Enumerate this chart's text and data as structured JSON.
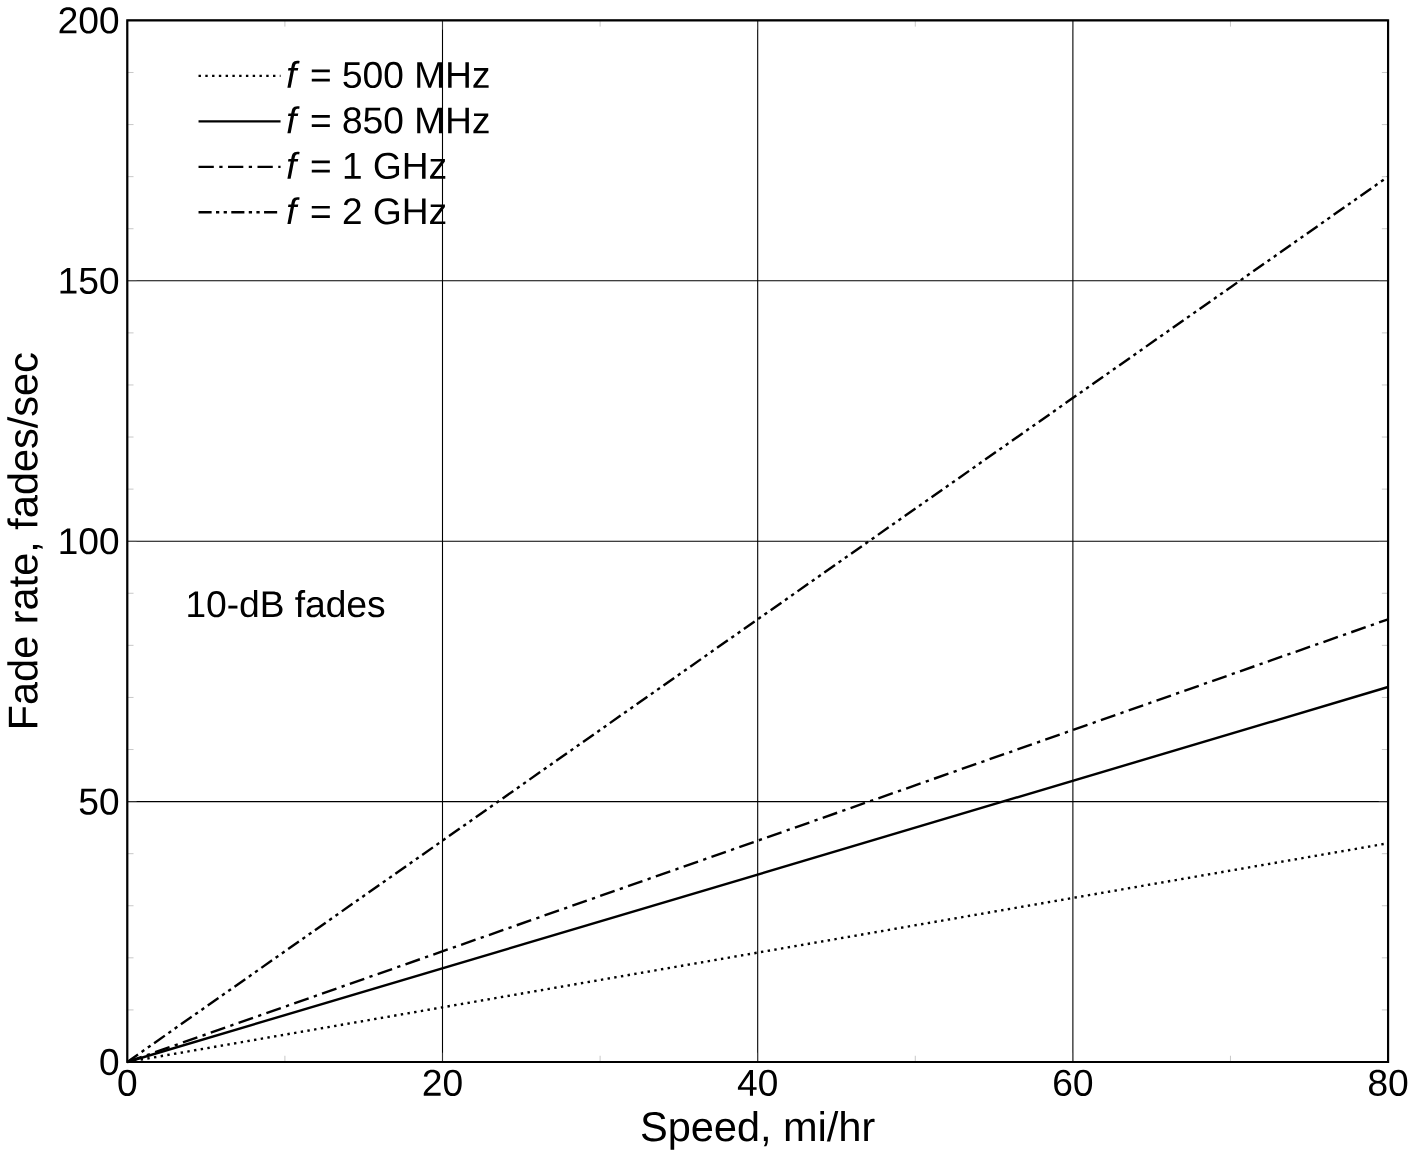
{
  "chart_data": {
    "type": "line",
    "xlabel": "Speed, mi/hr",
    "ylabel": "Fade rate, fades/sec",
    "x": [
      0,
      80
    ],
    "series": [
      {
        "name": "*f* = 500 MHz",
        "color": "#000000",
        "line_style": "dotted",
        "values": [
          0,
          42
        ]
      },
      {
        "name": "*f* = 850 MHz",
        "color": "#000000",
        "line_style": "solid",
        "values": [
          0,
          72
        ]
      },
      {
        "name": "*f* = 1 GHz",
        "color": "#000000",
        "line_style": "dashdot",
        "values": [
          0,
          85
        ]
      },
      {
        "name": "*f* = 2 GHz",
        "color": "#000000",
        "line_style": "dashdotdot",
        "values": [
          0,
          170
        ]
      }
    ],
    "annotations": [
      "10-dB fades"
    ],
    "xlim": [
      0,
      80
    ],
    "ylim": [
      0,
      200
    ],
    "xticks": [
      0,
      20,
      40,
      60,
      80
    ],
    "yticks": [
      0,
      50,
      100,
      150,
      200
    ],
    "grid": true,
    "legend": "top left",
    "marker": "none"
  }
}
